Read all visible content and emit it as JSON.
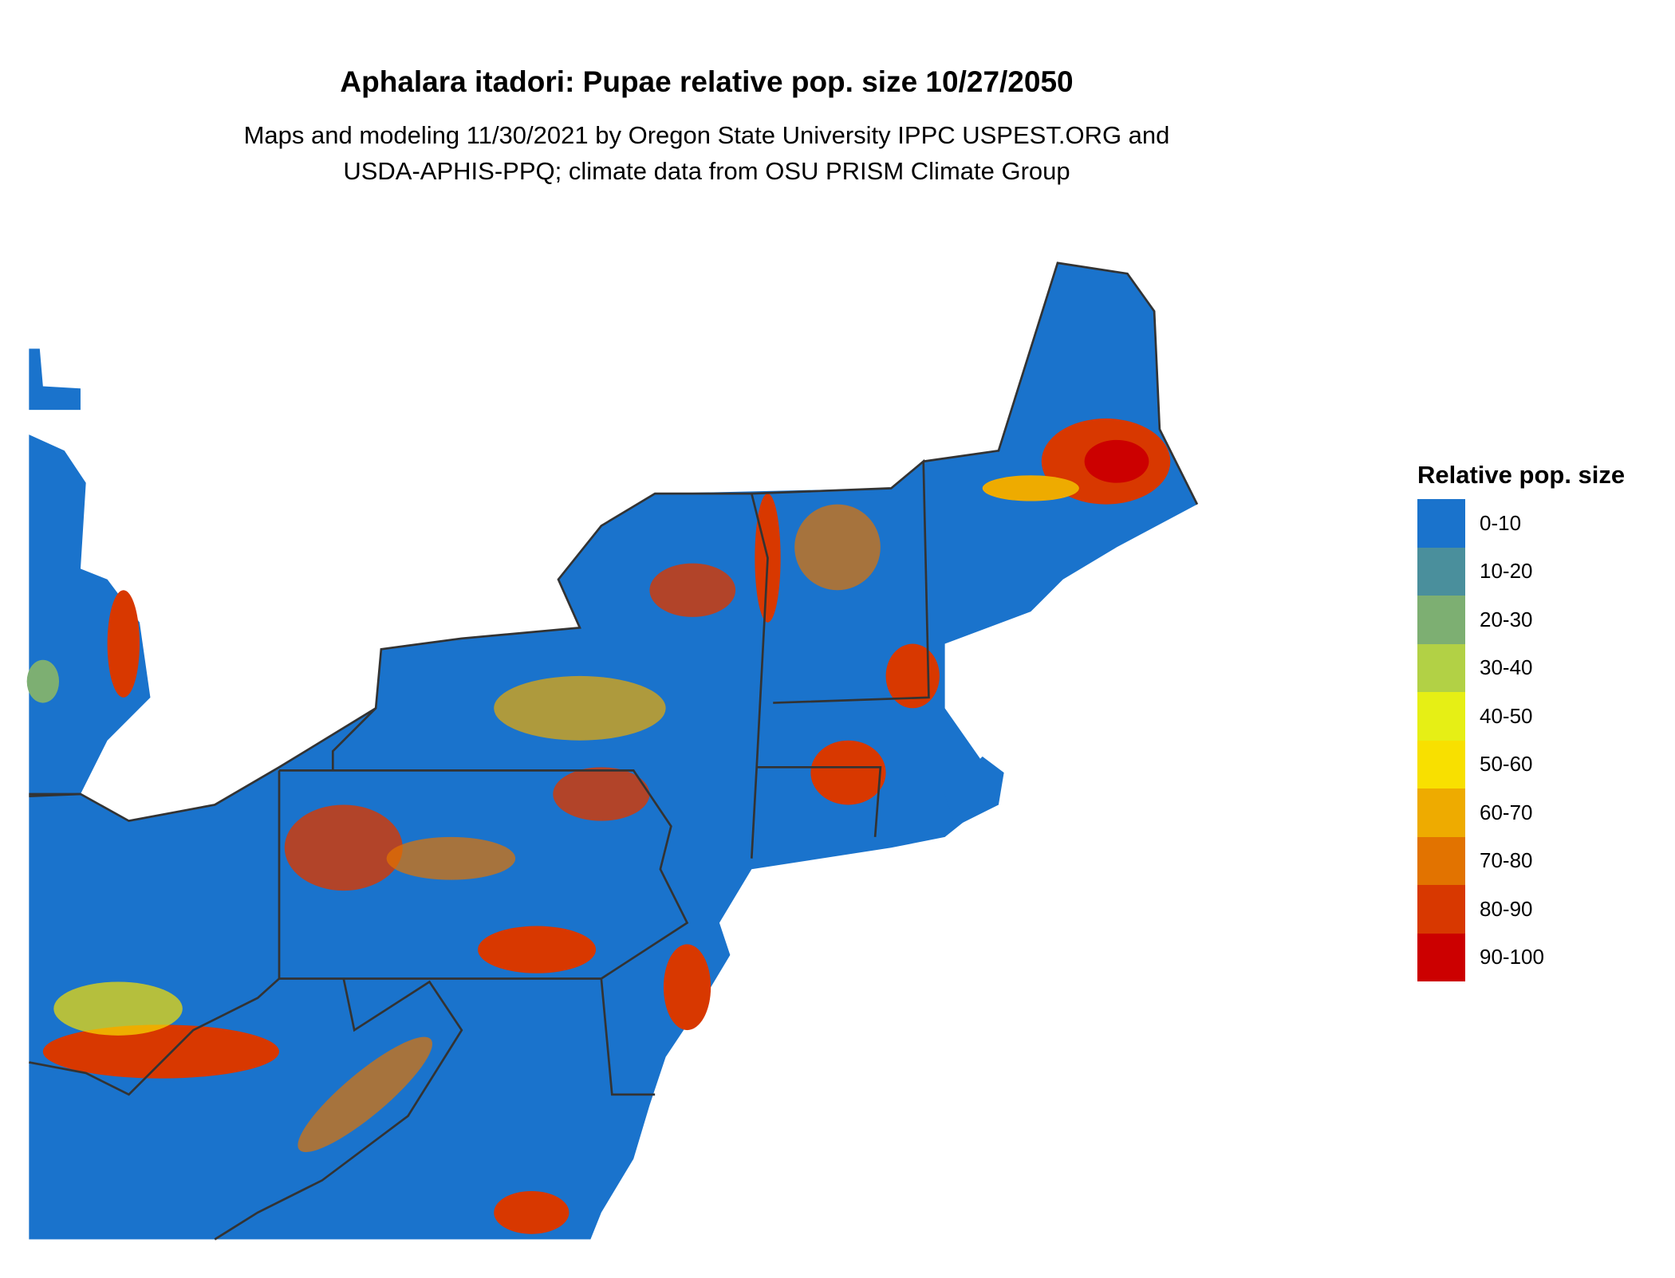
{
  "title": "Aphalara itadori: Pupae relative pop. size 10/27/2050",
  "subtitle_lines": [
    "Maps and modeling 11/30/2021 by Oregon State University IPPC USPEST.ORG and",
    "USDA-APHIS-PPQ; climate data from OSU PRISM Climate Group"
  ],
  "legend": {
    "title": "Relative pop. size",
    "items": [
      {
        "label": "0-10",
        "color": "#1a73cc"
      },
      {
        "label": "10-20",
        "color": "#4a8f9c"
      },
      {
        "label": "20-30",
        "color": "#7daf72"
      },
      {
        "label": "30-40",
        "color": "#b2d145"
      },
      {
        "label": "40-50",
        "color": "#e6ef15"
      },
      {
        "label": "50-60",
        "color": "#f8e000"
      },
      {
        "label": "60-70",
        "color": "#eeab00"
      },
      {
        "label": "70-80",
        "color": "#e27300"
      },
      {
        "label": "80-90",
        "color": "#d83800"
      },
      {
        "label": "90-100",
        "color": "#cc0000"
      }
    ]
  },
  "map": {
    "region": "Northeastern United States",
    "border_color": "#333333"
  }
}
